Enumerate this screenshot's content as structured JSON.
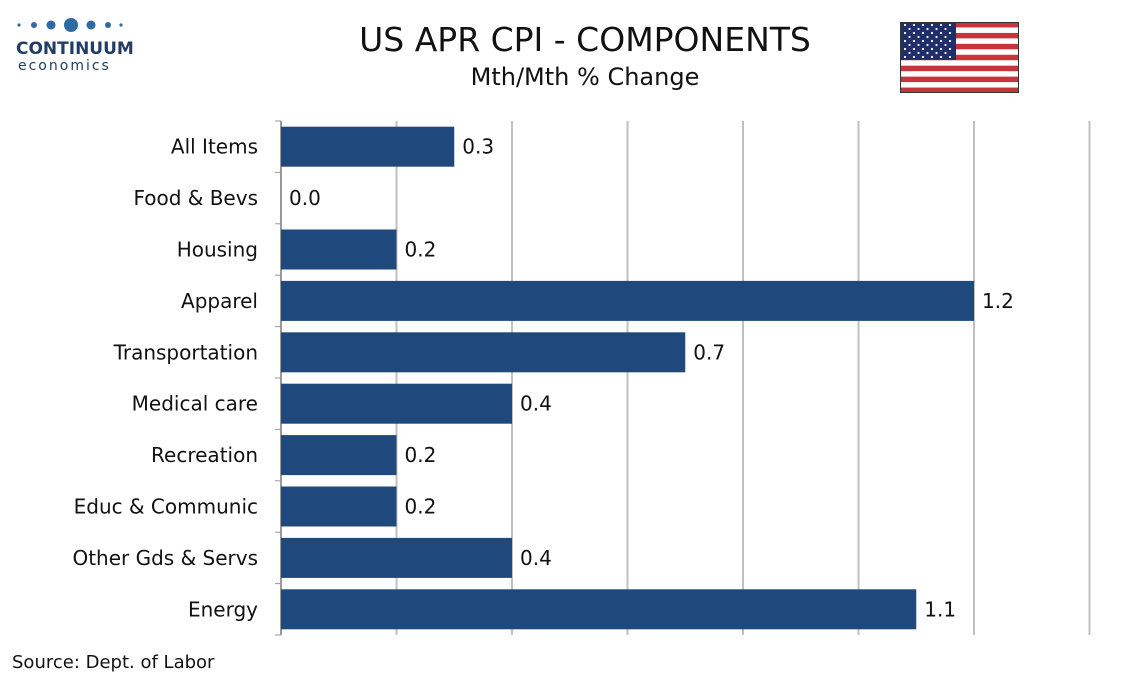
{
  "brand": {
    "name": "CONTINUUM",
    "sub": "economics"
  },
  "header": {
    "title": "US APR CPI - COMPONENTS",
    "subtitle": "Mth/Mth % Change"
  },
  "source": "Source: Dept. of Labor",
  "colors": {
    "bar": "#1f497d",
    "grid": "#c0c0c0",
    "brand": "#1f3d66",
    "flag_red": "#c8343c",
    "flag_blue": "#1f2f6b"
  },
  "icons": {
    "logo": "continuum-logo",
    "flag": "us-flag-icon"
  },
  "chart_data": {
    "type": "bar",
    "orientation": "horizontal",
    "title": "US APR CPI - COMPONENTS",
    "subtitle": "Mth/Mth % Change",
    "categories": [
      "All Items",
      "Food & Bevs",
      "Housing",
      "Apparel ",
      "Transportation",
      "Medical care",
      "Recreation",
      "Educ & Communic",
      "Other Gds & Servs",
      "Energy"
    ],
    "values": [
      0.3,
      0.0,
      0.2,
      1.2,
      0.7,
      0.4,
      0.2,
      0.2,
      0.4,
      1.1
    ],
    "labels": [
      "0.3",
      "0.0",
      "0.2",
      "1.2",
      "0.7",
      "0.4",
      "0.2",
      "0.2",
      "0.4",
      "1.1"
    ],
    "xlim": [
      0,
      1.4
    ],
    "grid": true,
    "legend": "none"
  }
}
